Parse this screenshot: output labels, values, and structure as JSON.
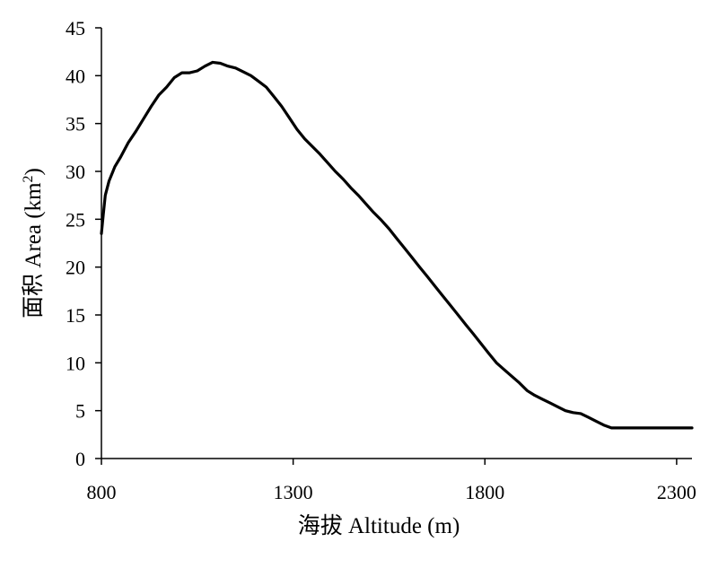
{
  "chart_data": {
    "type": "line",
    "title": "",
    "xlabel": "海拔 Altitude (m)",
    "ylabel_main": "面积 Area (km",
    "ylabel_sup": "2",
    "ylabel_close": ")",
    "xlim": [
      800,
      2340
    ],
    "ylim": [
      0,
      45
    ],
    "x_ticks": [
      800,
      1300,
      1800,
      2300
    ],
    "y_ticks": [
      0,
      5,
      10,
      15,
      20,
      25,
      30,
      35,
      40,
      45
    ],
    "grid": false,
    "legend": "none",
    "line_color": "#000000",
    "series": [
      {
        "x": [
          800,
          805,
          810,
          820,
          835,
          850,
          870,
          890,
          910,
          930,
          950,
          970,
          990,
          1010,
          1030,
          1050,
          1070,
          1090,
          1110,
          1130,
          1150,
          1170,
          1190,
          1210,
          1230,
          1250,
          1270,
          1290,
          1310,
          1330,
          1350,
          1370,
          1390,
          1410,
          1430,
          1450,
          1470,
          1490,
          1510,
          1530,
          1550,
          1570,
          1590,
          1610,
          1630,
          1650,
          1670,
          1690,
          1710,
          1730,
          1750,
          1770,
          1790,
          1810,
          1830,
          1850,
          1870,
          1890,
          1910,
          1930,
          1950,
          1970,
          1990,
          2010,
          2030,
          2050,
          2070,
          2090,
          2110,
          2130,
          2150,
          2170,
          2190,
          2210,
          2230,
          2250,
          2270,
          2290,
          2310,
          2330,
          2340
        ],
        "values": [
          23.5,
          25.5,
          27.5,
          29.0,
          30.5,
          31.5,
          33.0,
          34.2,
          35.5,
          36.8,
          38.0,
          38.8,
          39.8,
          40.3,
          40.3,
          40.5,
          41.0,
          41.4,
          41.3,
          41.0,
          40.8,
          40.4,
          40.0,
          39.4,
          38.8,
          37.8,
          36.8,
          35.6,
          34.4,
          33.4,
          32.6,
          31.8,
          30.9,
          30.0,
          29.2,
          28.3,
          27.5,
          26.6,
          25.7,
          24.9,
          24.0,
          23.0,
          22.0,
          21.0,
          20.0,
          19.0,
          18.0,
          17.0,
          16.0,
          15.0,
          14.0,
          13.0,
          12.0,
          11.0,
          10.0,
          9.3,
          8.6,
          7.9,
          7.1,
          6.6,
          6.2,
          5.8,
          5.4,
          5.0,
          4.8,
          4.7,
          4.3,
          3.9,
          3.5,
          3.2,
          3.2,
          3.2,
          3.2,
          3.2,
          3.2,
          3.2,
          3.2,
          3.2,
          3.2,
          3.2,
          3.2
        ]
      }
    ]
  }
}
